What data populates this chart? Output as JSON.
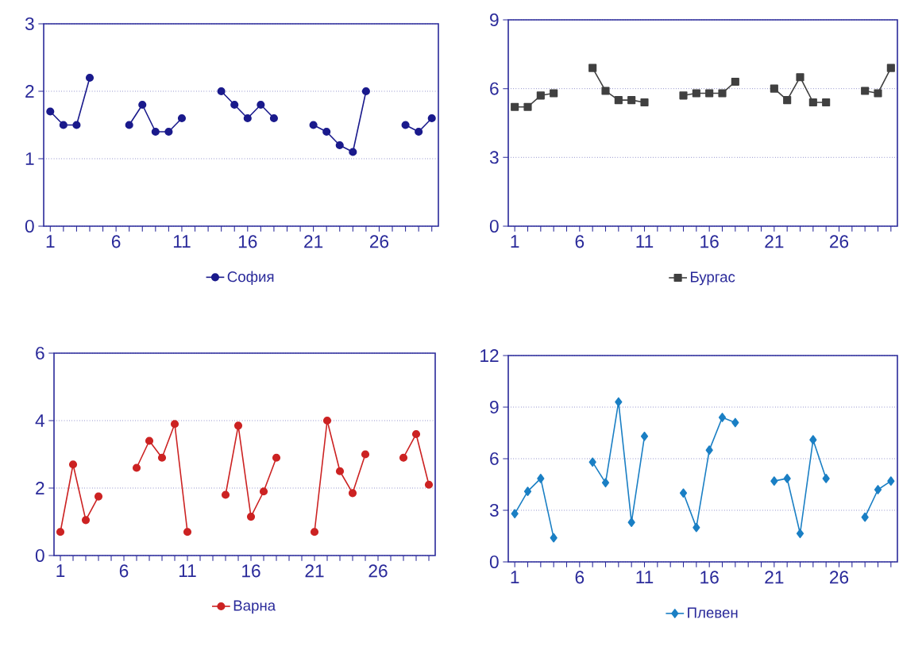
{
  "chart_data": [
    {
      "type": "line",
      "categories": [
        "1",
        null,
        null,
        null,
        null,
        "6",
        null,
        null,
        null,
        null,
        "11",
        null,
        null,
        null,
        null,
        "16",
        null,
        null,
        null,
        null,
        "21",
        null,
        null,
        null,
        null,
        "26",
        null,
        null,
        null,
        null
      ],
      "ylim": [
        0,
        3
      ],
      "yticks": [
        0,
        1,
        2,
        3
      ],
      "grid": "y",
      "legend": "bottom",
      "marker": "circle",
      "series": [
        {
          "name": "София",
          "color": "#1a1a8c",
          "values": [
            1.7,
            1.5,
            1.5,
            2.2,
            null,
            null,
            1.5,
            1.8,
            1.4,
            1.4,
            1.6,
            null,
            null,
            2.0,
            1.8,
            1.6,
            1.8,
            1.6,
            null,
            null,
            1.5,
            1.4,
            1.2,
            1.1,
            2.0,
            null,
            null,
            1.5,
            1.4,
            1.6
          ]
        }
      ]
    },
    {
      "type": "line",
      "categories": [
        "1",
        null,
        null,
        null,
        null,
        "6",
        null,
        null,
        null,
        null,
        "11",
        null,
        null,
        null,
        null,
        "16",
        null,
        null,
        null,
        null,
        "21",
        null,
        null,
        null,
        null,
        "26",
        null,
        null,
        null,
        null
      ],
      "ylim": [
        0,
        9
      ],
      "yticks": [
        0,
        3,
        6,
        9
      ],
      "grid": "y",
      "legend": "bottom",
      "marker": "square",
      "series": [
        {
          "name": "Бургас",
          "color": "#404040",
          "values": [
            5.2,
            5.2,
            5.7,
            5.8,
            null,
            null,
            6.9,
            5.9,
            5.5,
            5.5,
            5.4,
            null,
            null,
            5.7,
            5.8,
            5.8,
            5.8,
            6.3,
            null,
            null,
            6.0,
            5.5,
            6.5,
            5.4,
            5.4,
            null,
            null,
            5.9,
            5.8,
            6.9
          ]
        }
      ]
    },
    {
      "type": "line",
      "categories": [
        "1",
        null,
        null,
        null,
        null,
        "6",
        null,
        null,
        null,
        null,
        "11",
        null,
        null,
        null,
        null,
        "16",
        null,
        null,
        null,
        null,
        "21",
        null,
        null,
        null,
        null,
        "26",
        null,
        null,
        null,
        null
      ],
      "ylim": [
        0,
        6
      ],
      "yticks": [
        0,
        2,
        4,
        6
      ],
      "grid": "y",
      "legend": "bottom",
      "marker": "circle",
      "series": [
        {
          "name": "Варна",
          "color": "#cc2222",
          "values": [
            0.7,
            2.7,
            1.05,
            1.75,
            null,
            null,
            2.6,
            3.4,
            2.9,
            3.9,
            0.7,
            null,
            null,
            1.8,
            3.85,
            1.15,
            1.9,
            2.9,
            null,
            null,
            0.7,
            4.0,
            2.5,
            1.85,
            3.0,
            null,
            null,
            2.9,
            3.6,
            2.1
          ]
        }
      ]
    },
    {
      "type": "line",
      "categories": [
        "1",
        null,
        null,
        null,
        null,
        "6",
        null,
        null,
        null,
        null,
        "11",
        null,
        null,
        null,
        null,
        "16",
        null,
        null,
        null,
        null,
        "21",
        null,
        null,
        null,
        null,
        "26",
        null,
        null,
        null,
        null
      ],
      "ylim": [
        0,
        12
      ],
      "yticks": [
        0,
        3,
        6,
        9,
        12
      ],
      "grid": "y",
      "legend": "bottom",
      "marker": "diamond",
      "series": [
        {
          "name": "Плевен",
          "color": "#1a7fc4",
          "values": [
            2.8,
            4.1,
            4.85,
            1.4,
            null,
            null,
            5.8,
            4.6,
            9.3,
            2.3,
            7.3,
            null,
            null,
            4.0,
            2.0,
            6.5,
            8.4,
            8.1,
            null,
            null,
            4.7,
            4.85,
            1.65,
            7.1,
            4.85,
            null,
            null,
            2.6,
            4.2,
            4.7
          ]
        }
      ]
    }
  ]
}
